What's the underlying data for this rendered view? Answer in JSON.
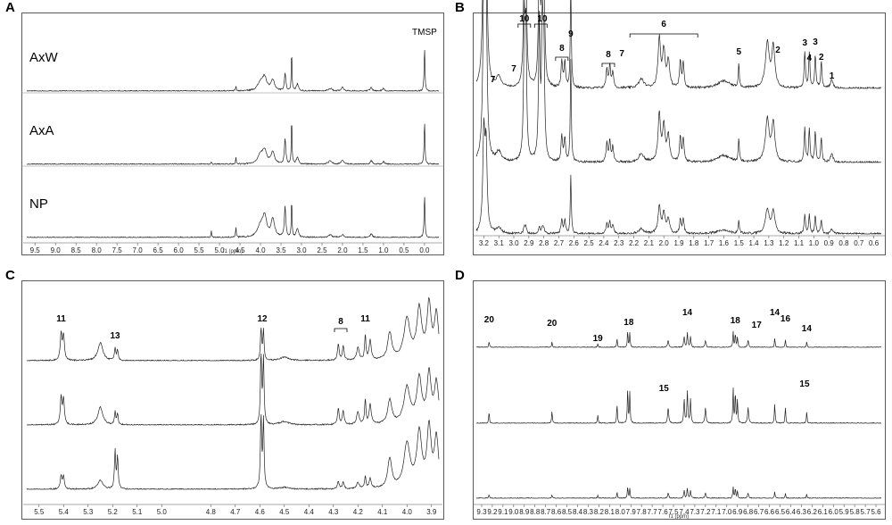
{
  "chart_data": [
    {
      "panel": "A",
      "type": "line",
      "xaxis": {
        "label": "f1 (ppm)",
        "ticks": [
          "9.5",
          "9.0",
          "8.5",
          "8.0",
          "7.5",
          "7.0",
          "6.5",
          "6.0",
          "5.5",
          "5.0",
          "4.5",
          "4.0",
          "3.5",
          "3.0",
          "2.5",
          "2.0",
          "1.5",
          "1.0",
          "0.5",
          "0.0"
        ],
        "reversed": true,
        "range": [
          9.7,
          -0.35
        ]
      },
      "traces": [
        "AxW",
        "AxA",
        "NP"
      ],
      "peak_labels": [
        {
          "text": "TMSP",
          "x": 0.0
        }
      ]
    },
    {
      "panel": "B",
      "type": "line",
      "xaxis": {
        "label": "",
        "ticks": [
          "3.2",
          "3.1",
          "3.0",
          "2.9",
          "2.8",
          "2.7",
          "2.6",
          "2.5",
          "2.4",
          "2.3",
          "2.2",
          "2.1",
          "2.0",
          "1.9",
          "1.8",
          "1.7",
          "1.6",
          "1.5",
          "1.4",
          "1.3",
          "1.2",
          "1.1",
          "1.0",
          "0.9",
          "0.8",
          "0.7",
          "0.6"
        ],
        "reversed": true,
        "range": [
          3.25,
          0.55
        ]
      },
      "traces": [
        "",
        "",
        ""
      ],
      "peak_labels": [
        {
          "text": "7",
          "x": 3.14
        },
        {
          "text": "7",
          "x": 3.0
        },
        {
          "text": "10",
          "x": 2.93
        },
        {
          "text": "10",
          "x": 2.81
        },
        {
          "text": "9",
          "x": 2.62
        },
        {
          "text": "8",
          "x": 2.68
        },
        {
          "text": "8",
          "x": 2.37
        },
        {
          "text": "7",
          "x": 2.28
        },
        {
          "text": "6",
          "x": 2.0
        },
        {
          "text": "5",
          "x": 1.5
        },
        {
          "text": "2",
          "x": 1.24
        },
        {
          "text": "3",
          "x": 1.06
        },
        {
          "text": "4",
          "x": 1.03
        },
        {
          "text": "3",
          "x": 0.99
        },
        {
          "text": "2",
          "x": 0.95
        },
        {
          "text": "1",
          "x": 0.88
        }
      ]
    },
    {
      "panel": "C",
      "type": "line",
      "xaxis": {
        "label": "",
        "ticks": [
          "5.5",
          "5.4",
          "5.3",
          "5.2",
          "5.1",
          "5.0",
          "4.8",
          "4.7",
          "4.6",
          "4.5",
          "4.4",
          "4.3",
          "4.2",
          "4.1",
          "4.0",
          "3.9"
        ],
        "reversed": true,
        "range": [
          5.55,
          3.87
        ]
      },
      "traces": [
        "",
        "",
        ""
      ],
      "peak_labels": [
        {
          "text": "11",
          "x": 5.41
        },
        {
          "text": "13",
          "x": 5.19
        },
        {
          "text": "12",
          "x": 4.59
        },
        {
          "text": "8",
          "x": 4.27
        },
        {
          "text": "11",
          "x": 4.17
        }
      ]
    },
    {
      "panel": "D",
      "type": "line",
      "xaxis": {
        "label": "f1 (ppm)",
        "ticks": [
          "9.3",
          "9.2",
          "9.1",
          "9.0",
          "8.9",
          "8.8",
          "8.7",
          "8.6",
          "8.5",
          "8.4",
          "8.3",
          "8.2",
          "8.1",
          "8.0",
          "7.9",
          "7.8",
          "7.7",
          "7.6",
          "7.5",
          "7.4",
          "7.3",
          "7.2",
          "7.1",
          "7.0",
          "6.9",
          "6.8",
          "6.7",
          "6.6",
          "6.5",
          "6.4",
          "6.3",
          "6.2",
          "6.1",
          "6.0",
          "5.9",
          "5.8",
          "5.7",
          "5.6"
        ],
        "reversed": true,
        "range": [
          9.35,
          5.55
        ]
      },
      "traces": [
        "",
        "",
        ""
      ],
      "peak_labels": [
        {
          "text": "20",
          "x": 9.23
        },
        {
          "text": "20",
          "x": 8.64
        },
        {
          "text": "19",
          "x": 8.21
        },
        {
          "text": "18",
          "x": 7.92
        },
        {
          "text": "14",
          "x": 7.37
        },
        {
          "text": "18",
          "x": 6.92
        },
        {
          "text": "17",
          "x": 6.72
        },
        {
          "text": "14",
          "x": 6.55
        },
        {
          "text": "16",
          "x": 6.45
        },
        {
          "text": "14",
          "x": 6.25
        },
        {
          "text": "15",
          "x": 7.59
        },
        {
          "text": "15",
          "x": 6.27
        }
      ]
    }
  ],
  "panels": {
    "a": "A",
    "b": "B",
    "c": "C",
    "d": "D"
  },
  "colors": {
    "trace": "#222222",
    "frame": "#5a5a5a"
  }
}
